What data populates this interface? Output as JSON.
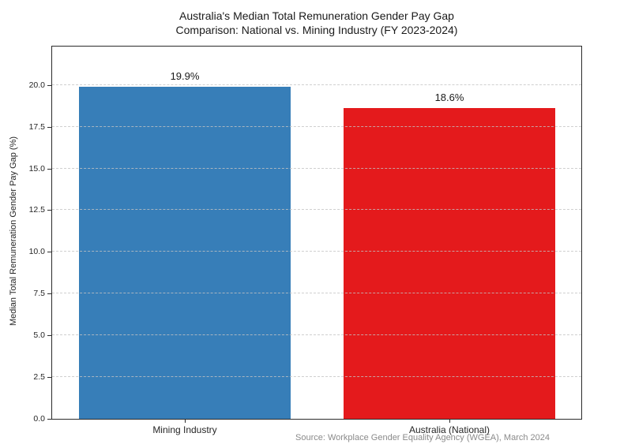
{
  "chart_data": {
    "type": "bar",
    "title": "Australia's Median Total Remuneration Gender Pay Gap",
    "subtitle": "Comparison: National vs. Mining Industry (FY 2023-2024)",
    "categories": [
      "Mining Industry",
      "Australia (National)"
    ],
    "values": [
      19.9,
      18.6
    ],
    "value_labels": [
      "19.9%",
      "18.6%"
    ],
    "bar_colors": [
      "#377eb8",
      "#e41a1c"
    ],
    "xlabel": "",
    "ylabel": "Median Total Remuneration Gender Pay Gap (%)",
    "ylim": [
      0,
      22.3
    ],
    "yticks": [
      "0.0",
      "2.5",
      "5.0",
      "7.5",
      "10.0",
      "12.5",
      "15.0",
      "17.5",
      "20.0"
    ],
    "grid": "horizontal-dashed",
    "grid_above_bars": true,
    "legend": "none",
    "source": "Source: Workplace Gender Equality Agency (WGEA), March 2024"
  },
  "colors": {
    "background": "#ffffff",
    "spine": "#2b2b2b",
    "grid": "#c3c3c3",
    "text": "#1a1a1a",
    "tick_text": "#262626",
    "source_text": "#8a8a8a"
  }
}
